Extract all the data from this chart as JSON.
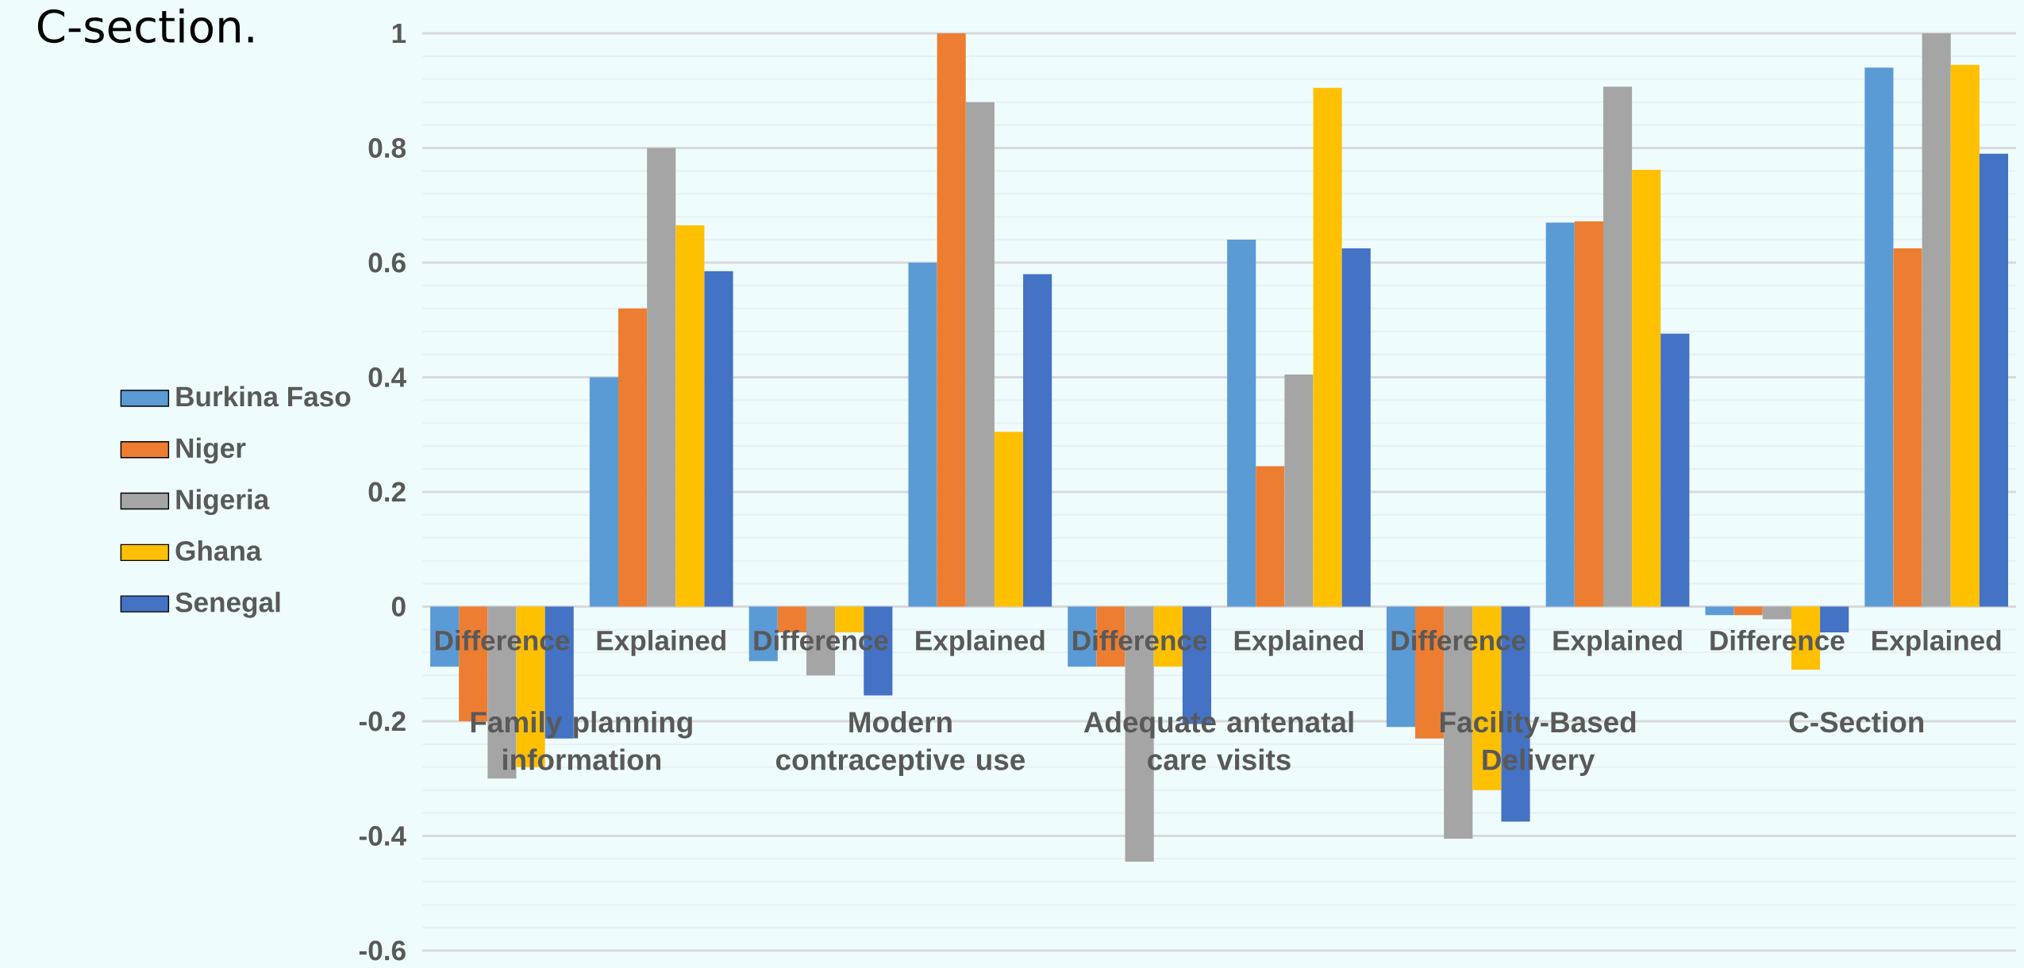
{
  "chart_data": {
    "type": "bar",
    "title": "C-section.",
    "categories": [
      "Difference",
      "Explained",
      "Difference",
      "Explained",
      "Difference",
      "Explained",
      "Difference",
      "Explained",
      "Difference",
      "Explained"
    ],
    "annotations": [
      "Family planning information",
      "Modern contraceptive use",
      "Adequate antenatal care visits",
      "Facility-Based Delivery",
      "C-Section"
    ],
    "series": [
      {
        "name": "Burkina Faso",
        "color": "#5b9bd5",
        "values": [
          -0.105,
          0.4,
          -0.095,
          0.6,
          -0.105,
          0.64,
          -0.21,
          0.67,
          -0.015,
          0.94
        ]
      },
      {
        "name": "Niger",
        "color": "#ed7d31",
        "values": [
          -0.2,
          0.52,
          -0.045,
          1.0,
          -0.105,
          0.245,
          -0.23,
          0.672,
          -0.015,
          0.625
        ]
      },
      {
        "name": "Nigeria",
        "color": "#a5a5a5",
        "values": [
          -0.3,
          0.8,
          -0.12,
          0.88,
          -0.445,
          0.405,
          -0.405,
          0.907,
          -0.022,
          1.0
        ]
      },
      {
        "name": "Ghana",
        "color": "#ffc000",
        "values": [
          -0.28,
          0.665,
          -0.045,
          0.305,
          -0.105,
          0.905,
          -0.32,
          0.762,
          -0.11,
          0.945
        ]
      },
      {
        "name": "Senegal",
        "color": "#4472c4",
        "values": [
          -0.23,
          0.585,
          -0.155,
          0.58,
          -0.205,
          0.625,
          -0.375,
          0.476,
          -0.045,
          0.79
        ]
      }
    ],
    "ylim": [
      -0.6,
      1
    ],
    "yticks": [
      -0.6,
      -0.4,
      -0.2,
      0,
      0.2,
      0.4,
      0.6,
      0.8,
      1
    ],
    "grid": "y",
    "legend": "left"
  }
}
